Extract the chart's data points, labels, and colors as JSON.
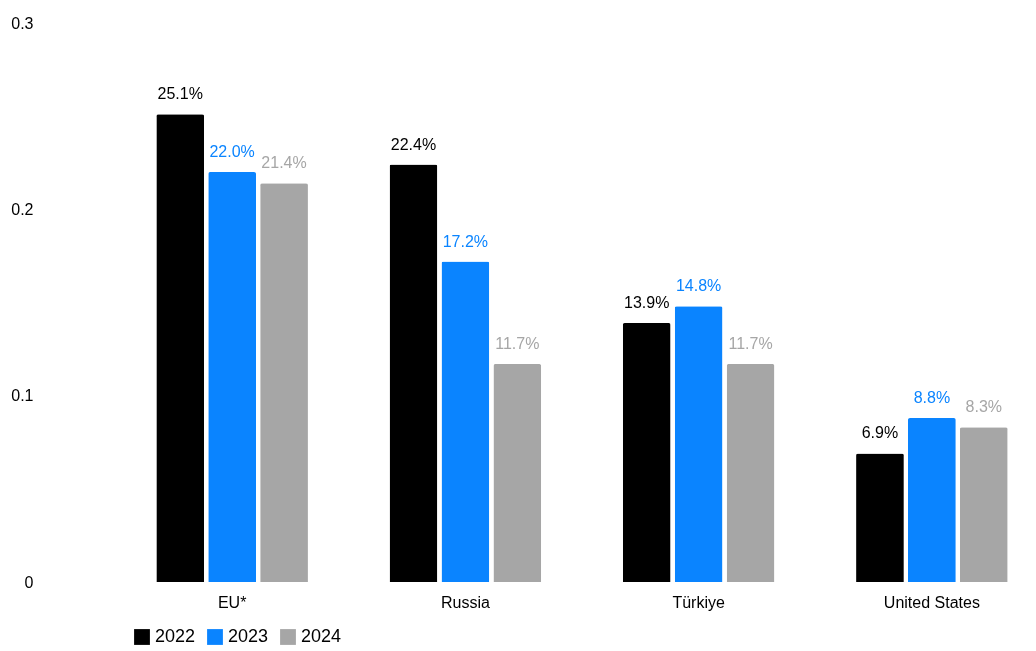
{
  "chart_data": {
    "type": "bar",
    "categories": [
      "EU*",
      "Russia",
      "Türkiye",
      "United States"
    ],
    "series": [
      {
        "name": "2022",
        "color": "#000000",
        "values": [
          0.251,
          0.224,
          0.139,
          0.069
        ],
        "value_labels": [
          "25.1%",
          "22.4%",
          "13.9%",
          "6.9%"
        ]
      },
      {
        "name": "2023",
        "color": "#0a84ff",
        "values": [
          0.22,
          0.172,
          0.148,
          0.088
        ],
        "value_labels": [
          "22.0%",
          "17.2%",
          "14.8%",
          "8.8%"
        ]
      },
      {
        "name": "2024",
        "color": "#a6a6a6",
        "values": [
          0.214,
          0.117,
          0.117,
          0.083
        ],
        "value_labels": [
          "21.4%",
          "11.7%",
          "11.7%",
          "8.3%"
        ]
      }
    ],
    "ylim": [
      0,
      0.3
    ],
    "yticks": [
      0,
      0.1,
      0.2,
      0.3
    ],
    "grid": false,
    "legend": "bottom"
  }
}
